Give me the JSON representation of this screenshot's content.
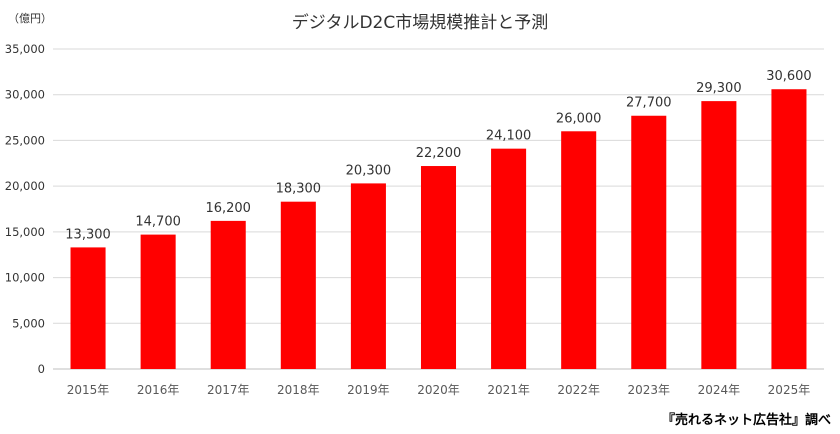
{
  "chart_data": {
    "type": "bar",
    "title": "デジタルD2C市場規模推計と予測",
    "unit_label": "（億円）",
    "source": "『売れるネット広告社』調べ",
    "categories": [
      "2015年",
      "2016年",
      "2017年",
      "2018年",
      "2019年",
      "2020年",
      "2021年",
      "2022年",
      "2023年",
      "2024年",
      "2025年"
    ],
    "values": [
      13300,
      14700,
      16200,
      18300,
      20300,
      22200,
      24100,
      26000,
      27700,
      29300,
      30600
    ],
    "value_labels": [
      "13,300",
      "14,700",
      "16,200",
      "18,300",
      "20,300",
      "22,200",
      "24,100",
      "26,000",
      "27,700",
      "29,300",
      "30,600"
    ],
    "y_ticks": [
      0,
      5000,
      10000,
      15000,
      20000,
      25000,
      30000,
      35000
    ],
    "y_tick_labels": [
      "0",
      "5,000",
      "10,000",
      "15,000",
      "20,000",
      "25,000",
      "30,000",
      "35,000"
    ],
    "ylim": [
      0,
      35000
    ],
    "grid": true,
    "legend": "none",
    "bar_color": "#ff0000"
  }
}
